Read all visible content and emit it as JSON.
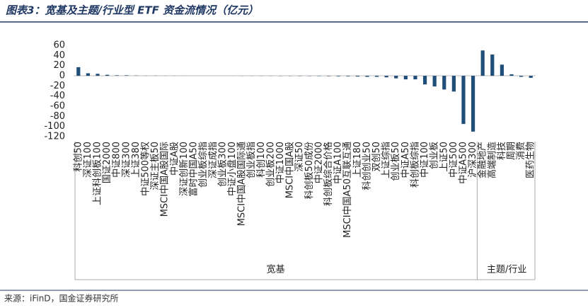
{
  "chart_data": {
    "type": "bar",
    "title": "图表3：宽基及主题/行业型 ETF 资金流情况（亿元）",
    "source": "来源：iFinD，国金证券研究所",
    "color": "#1f4e79",
    "ylim": [
      -120,
      65
    ],
    "yticks": [
      -120,
      -100,
      -80,
      -60,
      -40,
      -20,
      0,
      20,
      40,
      60
    ],
    "groups": [
      {
        "name": "宽基",
        "categories": [
          "科创50",
          "深证100",
          "上证科创板100",
          "国证2000",
          "中证800",
          "深证300",
          "上证380",
          "中证500等权",
          "深证主板50",
          "MSCI中国A股国际",
          "中证A股",
          "深证创新100",
          "富时中国A50",
          "创业板综指",
          "深证成指",
          "创业板300",
          "中证小盘100",
          "MSCI中国A股国际通",
          "创业板指",
          "科创100",
          "创业板200",
          "中证1000",
          "MSCI中国A股",
          "深证50",
          "科创板50成份",
          "中证2000",
          "科创板综合价格",
          "中证A100",
          "MSCI中国A50互联互通",
          "上证180",
          "科创创业50",
          "双创50",
          "上证综指",
          "创业板50",
          "中证A50",
          "科创板综指",
          "中证100",
          "创业板",
          "上证50",
          "中证500",
          "中证A500",
          "沪深300"
        ],
        "values": [
          17,
          5,
          4,
          2,
          1,
          1,
          0.5,
          0.3,
          0.3,
          0.2,
          0.2,
          0.1,
          0.1,
          0.1,
          0,
          0,
          -0.1,
          -0.2,
          -0.2,
          -0.3,
          -0.3,
          -0.4,
          -0.4,
          -0.5,
          -0.5,
          -0.6,
          -0.8,
          -1,
          -1,
          -1.5,
          -2,
          -2,
          -3,
          -5,
          -7,
          -7,
          -17,
          -21,
          -27,
          -31,
          -95,
          -110
        ]
      },
      {
        "name": "主题/行业",
        "categories": [
          "金融地产",
          "高端制造",
          "科技",
          "周期",
          "消费",
          "医药生物"
        ],
        "values": [
          50,
          42,
          22,
          3,
          -2,
          -4
        ]
      }
    ]
  }
}
